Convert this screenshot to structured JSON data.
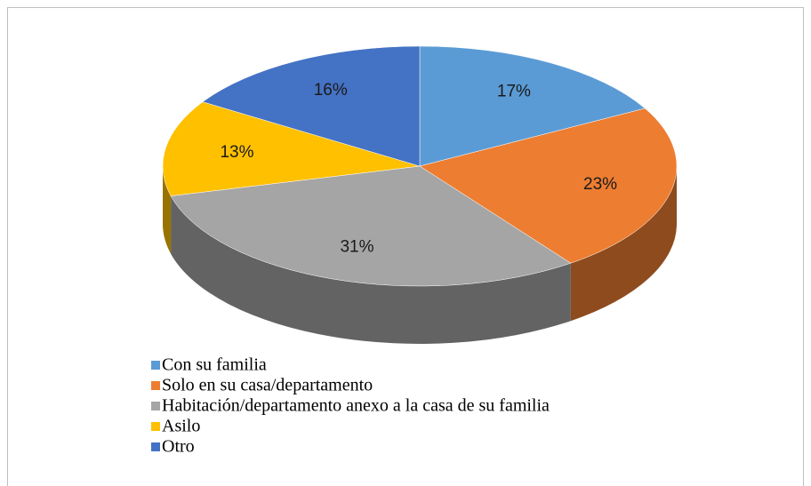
{
  "chart_data": {
    "type": "pie",
    "categories": [
      "Con su familia",
      "Solo en su casa/departamento",
      "Habitación/departamento anexo a la casa de su familia",
      "Asilo",
      "Otro"
    ],
    "values": [
      17,
      23,
      31,
      13,
      16
    ],
    "value_labels": [
      "17%",
      "23%",
      "31%",
      "13%",
      "16%"
    ],
    "colors": [
      "#5b9bd5",
      "#ed7d31",
      "#a5a5a5",
      "#ffc000",
      "#4472c4"
    ],
    "legend": "bottom"
  }
}
